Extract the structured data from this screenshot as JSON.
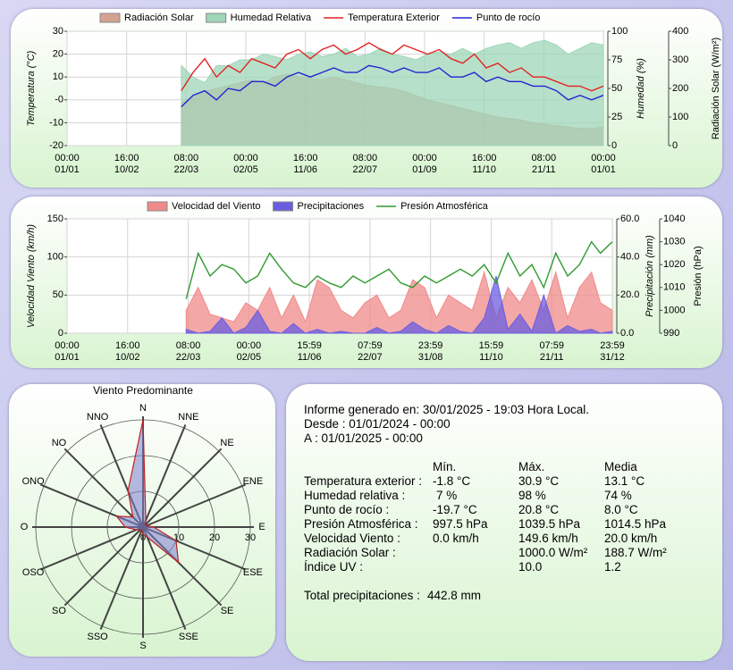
{
  "chart_data": [
    {
      "type": "line",
      "xlim": [
        0,
        366
      ],
      "xticks": [
        {
          "value": 0,
          "label": "00:00\n01/01"
        },
        {
          "value": 40.67,
          "label": "16:00\n10/02"
        },
        {
          "value": 81.33,
          "label": "08:00\n22/03"
        },
        {
          "value": 122,
          "label": "00:00\n02/05"
        },
        {
          "value": 162.67,
          "label": "16:00\n11/06"
        },
        {
          "value": 203.33,
          "label": "08:00\n22/07"
        },
        {
          "value": 244,
          "label": "00:00\n01/09"
        },
        {
          "value": 284.67,
          "label": "16:00\n11/10"
        },
        {
          "value": 325.33,
          "label": "08:00\n21/11"
        },
        {
          "value": 366,
          "label": "00:00\n01/01"
        }
      ],
      "ylabel": "Temperatura (°C)",
      "ylim": [
        -20,
        30
      ],
      "yticks": [
        -20,
        -10,
        {
          "value": 0,
          "label": "-0"
        },
        10,
        20,
        30
      ],
      "y2label": "Humedad (%)",
      "y2lim": [
        0,
        100
      ],
      "y2ticks": [
        0,
        25,
        50,
        75,
        100
      ],
      "y3label": "Radiación Solar (W/m²)",
      "y3lim": [
        0,
        400
      ],
      "y3ticks": [
        0,
        100,
        200,
        300,
        400
      ],
      "grid": true,
      "x": [
        78,
        86,
        94,
        102,
        110,
        118,
        126,
        134,
        142,
        150,
        158,
        166,
        174,
        182,
        190,
        198,
        206,
        214,
        222,
        230,
        238,
        246,
        254,
        262,
        270,
        278,
        286,
        294,
        302,
        310,
        318,
        326,
        334,
        342,
        350,
        358,
        366
      ],
      "series": [
        {
          "name": "Radiación Solar",
          "kind": "area",
          "axis": "y3",
          "color": "#d4a290",
          "values": [
            150,
            170,
            190,
            200,
            210,
            220,
            230,
            220,
            240,
            250,
            240,
            235,
            230,
            240,
            230,
            220,
            210,
            205,
            200,
            190,
            175,
            160,
            150,
            140,
            130,
            120,
            110,
            100,
            95,
            90,
            80,
            75,
            70,
            65,
            60,
            60,
            65
          ]
        },
        {
          "name": "Humedad Relativa",
          "kind": "area",
          "axis": "y2",
          "color": "#9fd6b8",
          "values": [
            70,
            60,
            55,
            70,
            70,
            75,
            75,
            80,
            78,
            75,
            80,
            82,
            78,
            80,
            85,
            78,
            80,
            85,
            80,
            78,
            75,
            80,
            82,
            80,
            85,
            80,
            85,
            88,
            90,
            85,
            90,
            92,
            88,
            80,
            85,
            90,
            88
          ]
        },
        {
          "name": "Temperatura Exterior",
          "kind": "line",
          "axis": "y",
          "color": "#e02424",
          "values": [
            4,
            12,
            18,
            10,
            15,
            12,
            18,
            16,
            14,
            20,
            22,
            18,
            22,
            24,
            20,
            22,
            25,
            22,
            20,
            24,
            22,
            20,
            22,
            18,
            16,
            20,
            14,
            16,
            12,
            14,
            10,
            10,
            8,
            6,
            6,
            4,
            6
          ]
        },
        {
          "name": "Punto de rocío",
          "kind": "line",
          "axis": "y",
          "color": "#2424d0",
          "values": [
            -3,
            2,
            4,
            0,
            5,
            4,
            8,
            8,
            6,
            10,
            12,
            10,
            12,
            14,
            12,
            12,
            15,
            14,
            12,
            14,
            12,
            12,
            14,
            10,
            10,
            12,
            8,
            10,
            8,
            8,
            6,
            6,
            4,
            0,
            2,
            0,
            2
          ]
        }
      ]
    },
    {
      "type": "line",
      "xlim": [
        0,
        366
      ],
      "xticks": [
        {
          "value": 0,
          "label": "00:00\n01/01"
        },
        {
          "value": 40.67,
          "label": "16:00\n10/02"
        },
        {
          "value": 81.33,
          "label": "08:00\n22/03"
        },
        {
          "value": 122,
          "label": "00:00\n02/05"
        },
        {
          "value": 162.67,
          "label": "15:59\n11/06"
        },
        {
          "value": 203.33,
          "label": "07:59\n22/07"
        },
        {
          "value": 244,
          "label": "23:59\n31/08"
        },
        {
          "value": 284.67,
          "label": "15:59\n11/10"
        },
        {
          "value": 325.33,
          "label": "07:59\n21/11"
        },
        {
          "value": 366,
          "label": "23:59\n31/12"
        }
      ],
      "ylabel": "Velocidad Viento (km/h)",
      "ylim": [
        0,
        150
      ],
      "yticks": [
        0,
        50,
        100,
        150
      ],
      "y2label": "Precipitación (mm)",
      "y2lim": [
        0,
        60
      ],
      "y2ticks": [
        {
          "value": 0,
          "label": "0.0"
        },
        {
          "value": 20,
          "label": "20.0"
        },
        {
          "value": 40,
          "label": "40.0"
        },
        {
          "value": 60,
          "label": "60.0"
        }
      ],
      "y3label": "Presión (hPa)",
      "y3lim": [
        990,
        1040
      ],
      "y3ticks": [
        990,
        1000,
        1010,
        1020,
        1030,
        1040
      ],
      "grid": true,
      "x": [
        80,
        88,
        96,
        104,
        112,
        120,
        128,
        136,
        144,
        152,
        160,
        168,
        176,
        184,
        192,
        200,
        208,
        216,
        224,
        232,
        240,
        248,
        256,
        264,
        272,
        280,
        288,
        296,
        304,
        312,
        320,
        328,
        336,
        344,
        352,
        358,
        366
      ],
      "series": [
        {
          "name": "Velocidad del Viento",
          "kind": "area",
          "axis": "y",
          "color": "#f08a8a",
          "values": [
            30,
            60,
            25,
            20,
            15,
            40,
            30,
            60,
            20,
            50,
            15,
            70,
            60,
            30,
            20,
            40,
            50,
            20,
            30,
            70,
            60,
            20,
            50,
            40,
            30,
            80,
            20,
            60,
            40,
            70,
            30,
            80,
            20,
            60,
            80,
            40,
            30
          ]
        },
        {
          "name": "Precipitaciones",
          "kind": "area",
          "axis": "y2",
          "color": "#6a5ee0",
          "values": [
            2,
            0,
            1,
            8,
            0,
            3,
            12,
            1,
            0,
            5,
            0,
            2,
            0,
            1,
            0,
            0,
            3,
            0,
            1,
            6,
            2,
            0,
            4,
            1,
            0,
            8,
            30,
            2,
            10,
            1,
            20,
            0,
            4,
            1,
            2,
            0,
            1
          ]
        },
        {
          "name": "Presión Atmosférica",
          "kind": "line",
          "axis": "y3",
          "color": "#2e9a2e",
          "values": [
            1005,
            1025,
            1015,
            1020,
            1018,
            1012,
            1015,
            1025,
            1018,
            1012,
            1010,
            1015,
            1012,
            1010,
            1015,
            1012,
            1015,
            1018,
            1012,
            1010,
            1015,
            1012,
            1015,
            1018,
            1015,
            1020,
            1012,
            1025,
            1015,
            1020,
            1010,
            1025,
            1015,
            1020,
            1030,
            1025,
            1030
          ]
        }
      ]
    },
    {
      "type": "radar",
      "title": "Viento Predominante",
      "categories": [
        "N",
        "NNE",
        "NE",
        "ENE",
        "E",
        "ESE",
        "SE",
        "SSE",
        "S",
        "SSO",
        "SO",
        "OSO",
        "O",
        "ONO",
        "NO",
        "NNO"
      ],
      "values": [
        30,
        2,
        1,
        1,
        3,
        10,
        14,
        3,
        2,
        1,
        1,
        2,
        5,
        8,
        4,
        11
      ],
      "rlim": [
        0,
        30
      ],
      "rticks": [
        0,
        10,
        20,
        30
      ],
      "color": "#8080d0"
    }
  ],
  "report": {
    "generated": "Informe generado en: 30/01/2025 - 19:03 Hora Local.",
    "from": "Desde : 01/01/2024 - 00:00",
    "to": "A : 01/01/2025 - 00:00",
    "header": [
      "Mín.",
      "Máx.",
      "Media"
    ],
    "rows": [
      {
        "label": "Temperatura exterior :",
        "min": "-1.8 °C",
        "max": "30.9 °C",
        "mean": "13.1 °C"
      },
      {
        "label": "Humedad relativa :",
        "min": "7 %",
        "max": "98 %",
        "mean": "74 %"
      },
      {
        "label": "Punto de rocío :",
        "min": "-19.7 °C",
        "max": "20.8 °C",
        "mean": "8.0 °C"
      },
      {
        "label": "Presión Atmosférica :",
        "min": "997.5 hPa",
        "max": "1039.5 hPa",
        "mean": "1014.5 hPa"
      },
      {
        "label": "Velocidad Viento :",
        "min": "0.0 km/h",
        "max": "149.6 km/h",
        "mean": "20.0 km/h"
      },
      {
        "label": "Radiación Solar :",
        "min": "",
        "max": "1000.0 W/m²",
        "mean": "188.7 W/m²"
      },
      {
        "label": "Índice UV :",
        "max": "10.0",
        "mean": "1.2"
      }
    ],
    "total_label": "Total precipitaciones :",
    "total_value": "442.8 mm"
  }
}
